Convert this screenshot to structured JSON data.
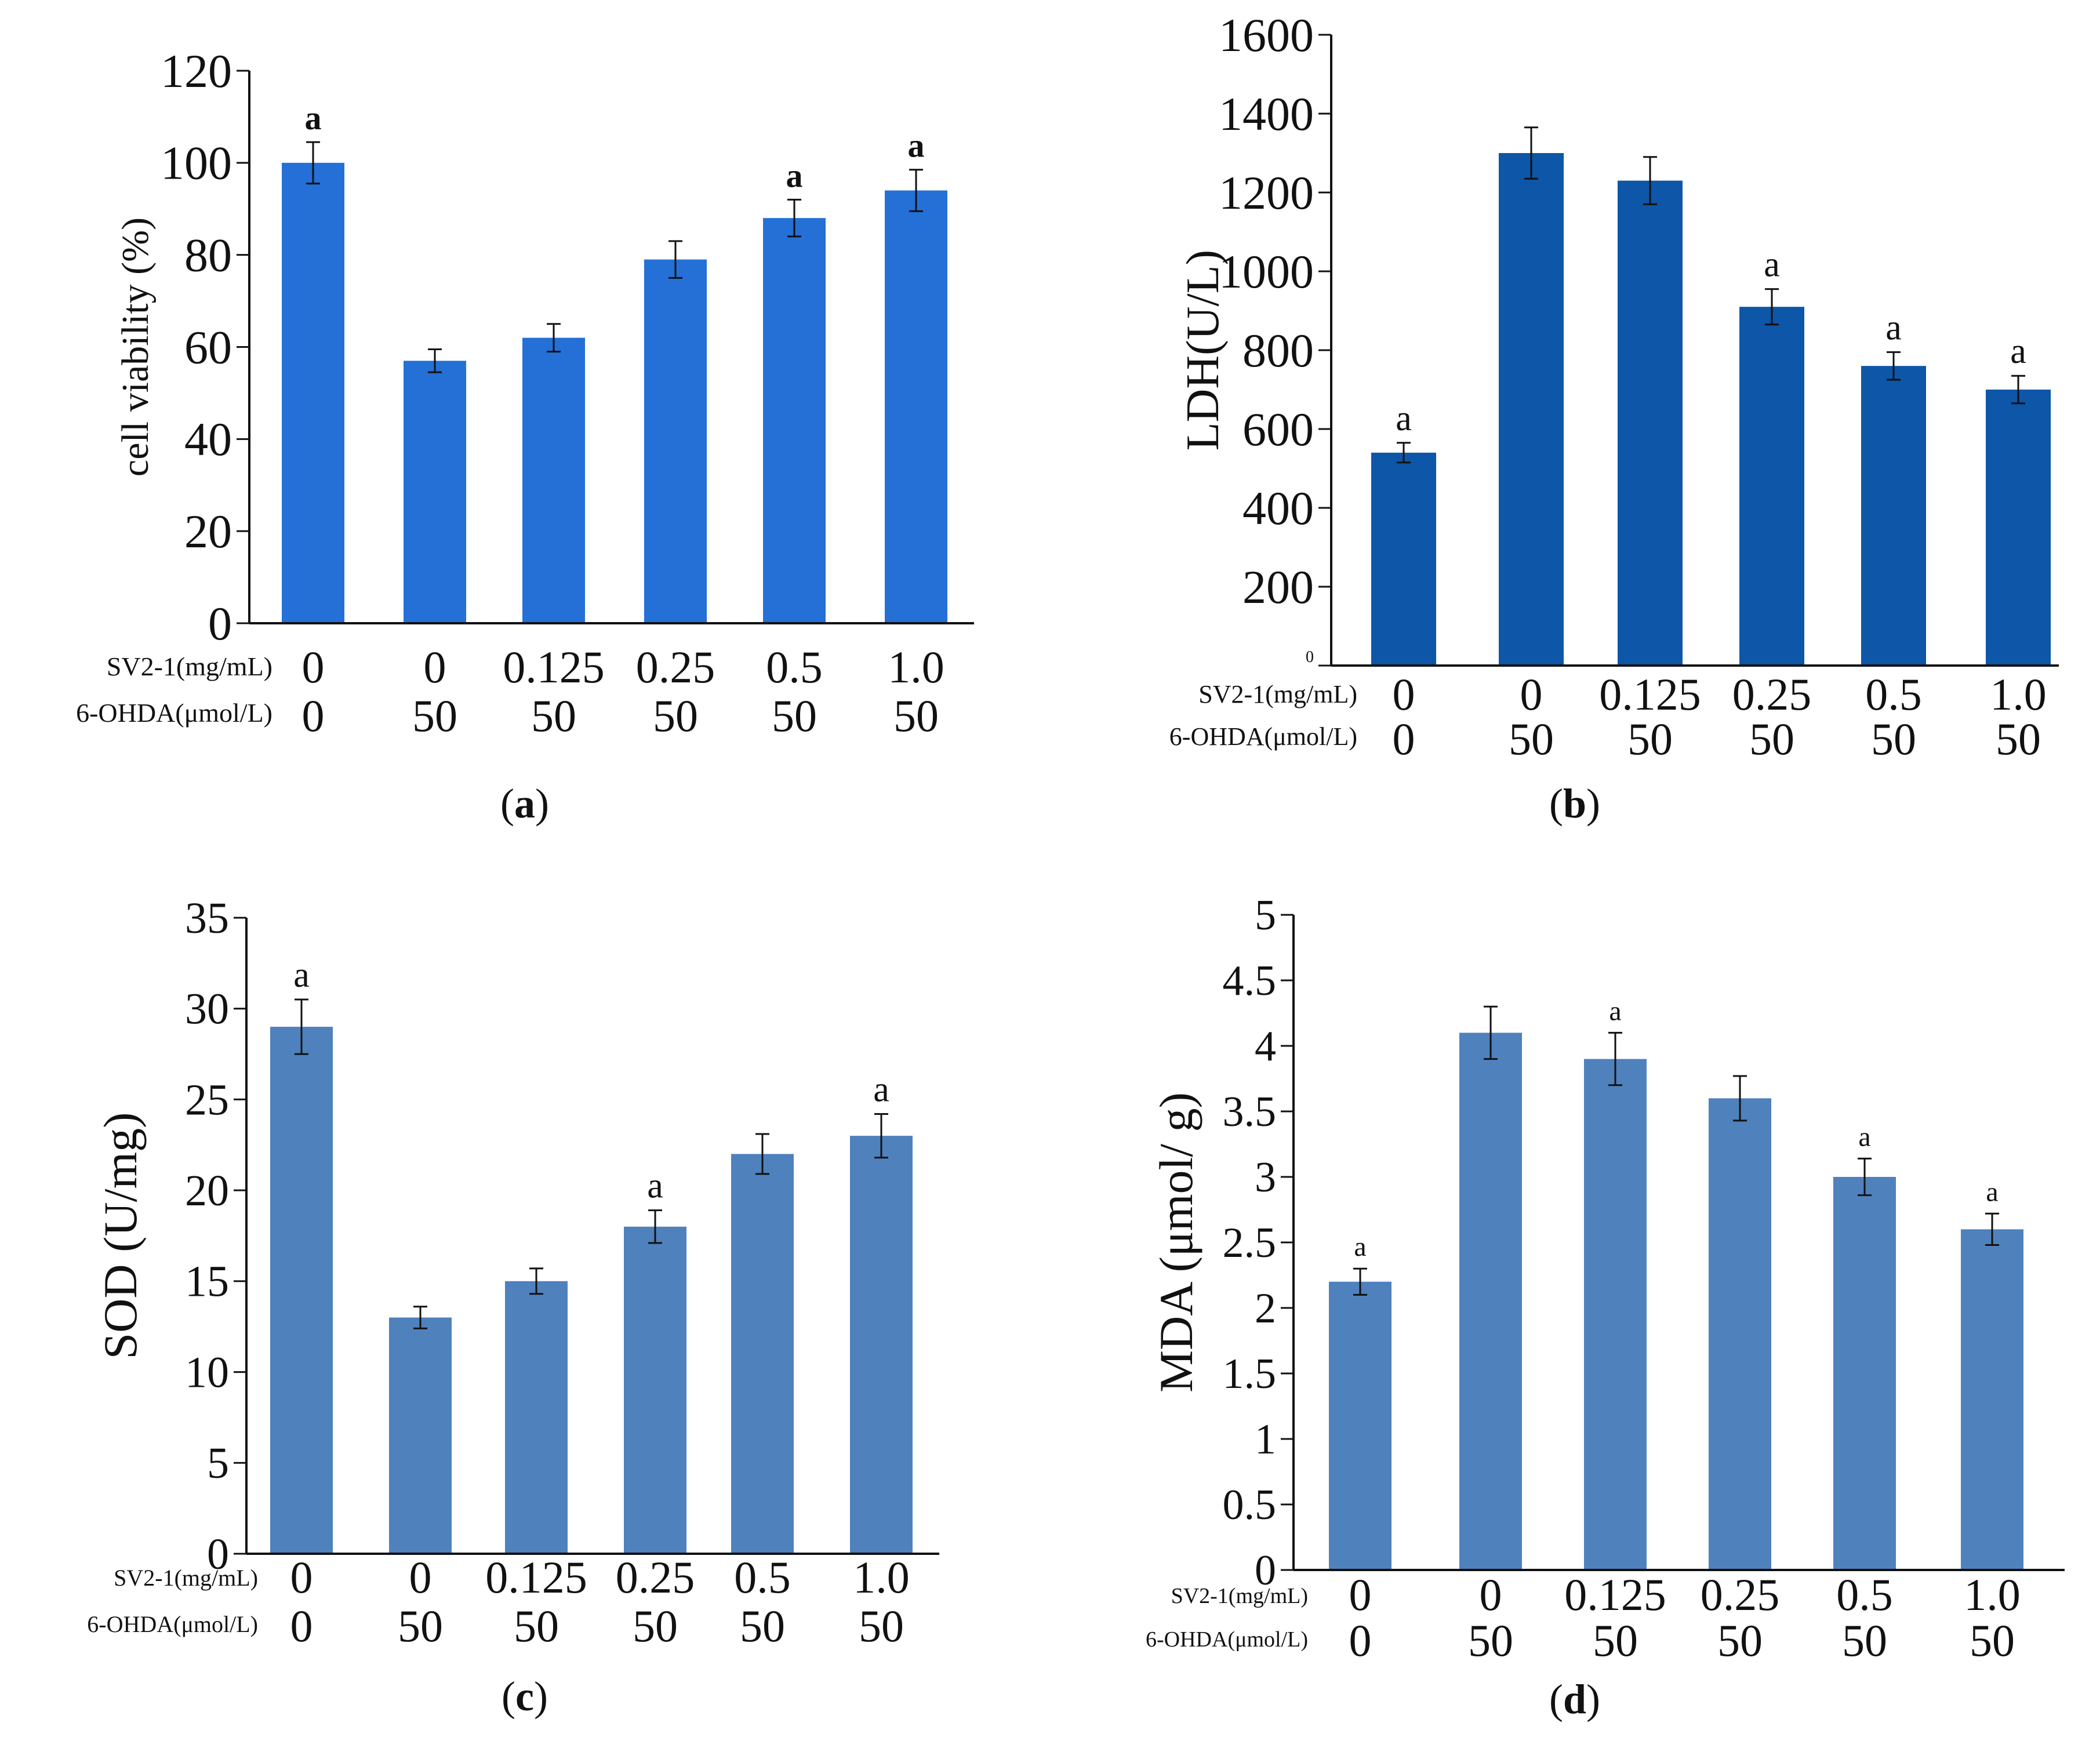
{
  "chart_data": [
    {
      "id": "a",
      "type": "bar",
      "panel_label": "(a)",
      "ylabel": "cell viability (%)",
      "ylim": [
        0,
        120
      ],
      "yticks": [
        "0",
        "20",
        "40",
        "60",
        "80",
        "100",
        "120"
      ],
      "ytick_values": [
        0,
        20,
        40,
        60,
        80,
        100,
        120
      ],
      "values": [
        100,
        57,
        62,
        79,
        88,
        94
      ],
      "errors": [
        4.5,
        2.5,
        3,
        4,
        4,
        4.5
      ],
      "sig": [
        "a",
        "",
        "",
        "",
        "a",
        "a"
      ],
      "row_labels": [
        "SV2-1(mg/mL)",
        "6-OHDA(μmol/L)"
      ],
      "row1": [
        "0",
        "0",
        "0.125",
        "0.25",
        "0.5",
        "1.0"
      ],
      "row2": [
        "0",
        "50",
        "50",
        "50",
        "50",
        "50"
      ],
      "color": "#2470d6"
    },
    {
      "id": "b",
      "type": "bar",
      "panel_label": "(b)",
      "ylabel": "LDH(U/L)",
      "ylim": [
        0,
        1600
      ],
      "yticks": [
        "0",
        "200",
        "400",
        "600",
        "800",
        "1000",
        "1200",
        "1400",
        "1600"
      ],
      "ytick_values": [
        0,
        200,
        400,
        600,
        800,
        1000,
        1200,
        1400,
        1600
      ],
      "values": [
        540,
        1300,
        1230,
        910,
        760,
        700
      ],
      "errors": [
        25,
        65,
        60,
        45,
        35,
        35
      ],
      "sig": [
        "a",
        "",
        "",
        "a",
        "a",
        "a"
      ],
      "row_labels": [
        "SV2-1(mg/mL)",
        "6-OHDA(μmol/L)"
      ],
      "row1": [
        "0",
        "0",
        "0.125",
        "0.25",
        "0.5",
        "1.0"
      ],
      "row2": [
        "0",
        "50",
        "50",
        "50",
        "50",
        "50"
      ],
      "color": "#0d56a8"
    },
    {
      "id": "c",
      "type": "bar",
      "panel_label": "(c)",
      "ylabel": "SOD (U/mg)",
      "ylim": [
        0,
        35
      ],
      "yticks": [
        "0",
        "5",
        "10",
        "15",
        "20",
        "25",
        "30",
        "35"
      ],
      "ytick_values": [
        0,
        5,
        10,
        15,
        20,
        25,
        30,
        35
      ],
      "values": [
        29,
        13,
        15,
        18,
        22,
        23
      ],
      "errors": [
        1.5,
        0.6,
        0.7,
        0.9,
        1.1,
        1.2
      ],
      "sig": [
        "a",
        "",
        "",
        "a",
        "",
        "a"
      ],
      "row_labels": [
        "SV2-1(mg/mL)",
        "6-OHDA(μmol/L)"
      ],
      "row1": [
        "0",
        "0",
        "0.125",
        "0.25",
        "0.5",
        "1.0"
      ],
      "row2": [
        "0",
        "50",
        "50",
        "50",
        "50",
        "50"
      ],
      "color": "#4f81bd"
    },
    {
      "id": "d",
      "type": "bar",
      "panel_label": "(d)",
      "ylabel": "MDA (μmol/ g)",
      "ylim": [
        0,
        5
      ],
      "yticks": [
        "0",
        "0.5",
        "1",
        "1.5",
        "2",
        "2.5",
        "3",
        "3.5",
        "4",
        "4.5",
        "5"
      ],
      "ytick_values": [
        0,
        0.5,
        1,
        1.5,
        2,
        2.5,
        3,
        3.5,
        4,
        4.5,
        5
      ],
      "values": [
        2.2,
        4.1,
        3.9,
        3.6,
        3.0,
        2.6
      ],
      "errors": [
        0.1,
        0.2,
        0.2,
        0.17,
        0.14,
        0.12
      ],
      "sig": [
        "a",
        "",
        "a",
        "",
        "a",
        "a"
      ],
      "row_labels": [
        "SV2-1(mg/mL)",
        "6-OHDA(μmol/L)"
      ],
      "row1": [
        "0",
        "0",
        "0.125",
        "0.25",
        "0.5",
        "1.0"
      ],
      "row2": [
        "0",
        "50",
        "50",
        "50",
        "50",
        "50"
      ],
      "color": "#4f81bd"
    }
  ]
}
